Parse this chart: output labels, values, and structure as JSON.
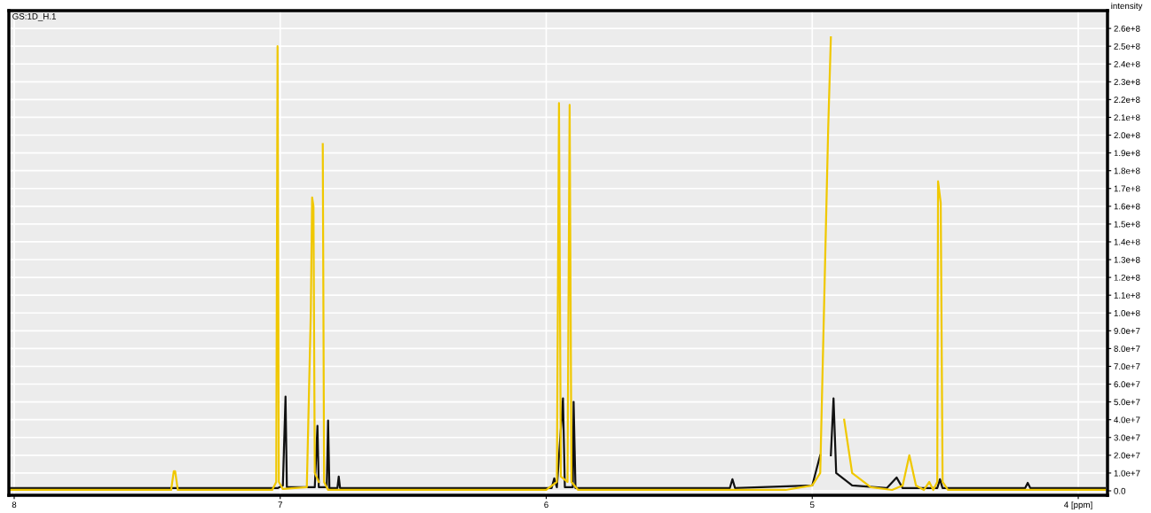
{
  "chart_data": {
    "type": "line",
    "ylabel": "intensity",
    "annotations": [
      "GS:1D_H.1"
    ],
    "xlim": [
      8.02,
      3.89
    ],
    "ylim": [
      -2500000,
      270000000
    ],
    "xticks": [
      8,
      7,
      6,
      5,
      {
        "value": 4,
        "label": "4 [ppm]"
      }
    ],
    "yticks": [
      {
        "value": 0,
        "label": "0.0"
      },
      {
        "value": 10000000,
        "label": "1.0e+7"
      },
      {
        "value": 20000000,
        "label": "2.0e+7"
      },
      {
        "value": 30000000,
        "label": "3.0e+7"
      },
      {
        "value": 40000000,
        "label": "4.0e+7"
      },
      {
        "value": 50000000,
        "label": "5.0e+7"
      },
      {
        "value": 60000000,
        "label": "6.0e+7"
      },
      {
        "value": 70000000,
        "label": "7.0e+7"
      },
      {
        "value": 80000000,
        "label": "8.0e+7"
      },
      {
        "value": 90000000,
        "label": "9.0e+7"
      },
      {
        "value": 100000000,
        "label": "1.0e+8"
      },
      {
        "value": 110000000,
        "label": "1.1e+8"
      },
      {
        "value": 120000000,
        "label": "1.2e+8"
      },
      {
        "value": 130000000,
        "label": "1.3e+8"
      },
      {
        "value": 140000000,
        "label": "1.4e+8"
      },
      {
        "value": 150000000,
        "label": "1.5e+8"
      },
      {
        "value": 160000000,
        "label": "1.6e+8"
      },
      {
        "value": 170000000,
        "label": "1.7e+8"
      },
      {
        "value": 180000000,
        "label": "1.8e+8"
      },
      {
        "value": 190000000,
        "label": "1.9e+8"
      },
      {
        "value": 200000000,
        "label": "2.0e+8"
      },
      {
        "value": 210000000,
        "label": "2.1e+8"
      },
      {
        "value": 220000000,
        "label": "2.2e+8"
      },
      {
        "value": 230000000,
        "label": "2.3e+8"
      },
      {
        "value": 240000000,
        "label": "2.4e+8"
      },
      {
        "value": 250000000,
        "label": "2.5e+8"
      },
      {
        "value": 260000000,
        "label": "2.6e+8"
      }
    ],
    "grid": true,
    "legend": false,
    "marker": "none",
    "line_style": "solid",
    "series": [
      {
        "color": "#111111",
        "x": [
          8.02,
          7.01,
          6.99,
          6.98,
          6.975,
          6.87,
          6.86,
          6.855,
          6.825,
          6.82,
          6.815,
          6.785,
          6.78,
          6.775,
          5.98,
          5.97,
          5.96,
          5.937,
          5.93,
          5.9,
          5.897,
          5.89,
          5.31,
          5.3,
          5.29,
          5.0,
          4.97,
          4.955,
          4.945,
          4.93,
          4.92,
          4.91,
          4.85,
          4.72,
          4.683,
          4.66,
          4.53,
          4.52,
          4.51,
          4.2,
          4.19,
          4.18,
          3.9
        ],
        "values": [
          1500000,
          1500000,
          3000000,
          53000000,
          2000000,
          2000000,
          36500000,
          2000000,
          2000000,
          39500000,
          1500000,
          1500000,
          8000000,
          1500000,
          1500000,
          7000000,
          2000000,
          52000000,
          2000000,
          2000000,
          50000000,
          1500000,
          1500000,
          6500000,
          1500000,
          3000000,
          20000000,
          null,
          null,
          20000000,
          52000000,
          10000000,
          3000000,
          1500000,
          7500000,
          1500000,
          1500000,
          6500000,
          1500000,
          1500000,
          4500000,
          1500000,
          1500000
        ]
      },
      {
        "color": "#f0c800",
        "x": [
          8.02,
          7.41,
          7.4,
          7.395,
          7.385,
          7.03,
          7.015,
          7.01,
          7.005,
          6.99,
          6.9,
          6.885,
          6.88,
          6.875,
          6.87,
          6.855,
          6.85,
          6.84,
          6.835,
          6.82,
          6.0,
          5.96,
          5.952,
          5.945,
          5.92,
          5.912,
          5.905,
          5.88,
          5.1,
          5.0,
          4.97,
          4.94,
          4.93,
          4.915,
          4.9,
          4.88,
          4.85,
          4.78,
          4.7,
          4.66,
          4.635,
          4.61,
          4.58,
          4.56,
          4.545,
          4.53,
          4.527,
          4.517,
          4.51,
          4.49,
          3.9
        ],
        "values": [
          500000,
          500000,
          11000000,
          11000000,
          500000,
          500000,
          5000000,
          250000000,
          5000000,
          1000000,
          2000000,
          100000000,
          165000000,
          160000000,
          10000000,
          5000000,
          null,
          195000000,
          5000000,
          500000,
          500000,
          5000000,
          218000000,
          8000000,
          5000000,
          217000000,
          5000000,
          500000,
          500000,
          3000000,
          10000000,
          204000000,
          255000000,
          null,
          null,
          40000000,
          10000000,
          2000000,
          500000,
          3000000,
          20000000,
          3000000,
          500000,
          5000000,
          500000,
          5000000,
          174000000,
          162000000,
          5000000,
          500000,
          500000
        ]
      }
    ]
  }
}
